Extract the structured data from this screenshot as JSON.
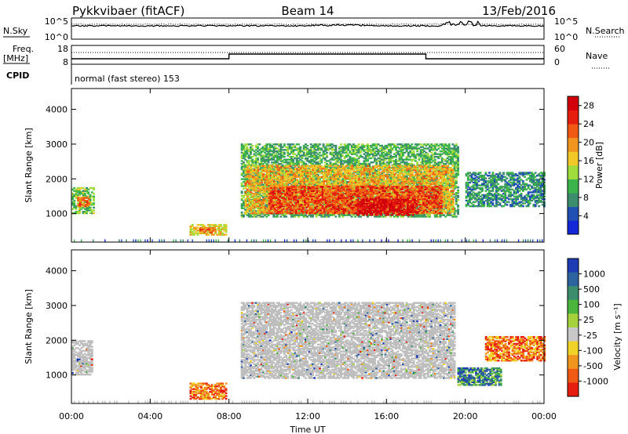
{
  "header": {
    "radar": "Pykkvibaer (fitACF)",
    "beam": "Beam 14",
    "date": "13/Feb/2016"
  },
  "strip_panels": {
    "nsky_label": "N.Sky",
    "nsky_ticks": [
      "10^5",
      "10^0"
    ],
    "nsearch_label": "N.Search",
    "nsearch_ticks": [
      "10^5",
      "10^0"
    ],
    "freq_label_1": "Freq.",
    "freq_label_2": "[MHz]",
    "freq_ticks": [
      "18",
      "8"
    ],
    "nave_label": "Nave",
    "nave_ticks": [
      "60",
      "0"
    ],
    "cpid_label": "CPID",
    "cpid_text": "normal (fast stereo) 153"
  },
  "colors": {
    "power_scale": [
      "#1428d8",
      "#2050b4",
      "#3c8c6e",
      "#3cb44b",
      "#a0dc3c",
      "#f0c828",
      "#f0961e",
      "#f05a14",
      "#e61e0f",
      "#d2000a"
    ],
    "velocity_scale": [
      "#1e3cb4",
      "#2d64a0",
      "#3c8c6e",
      "#4bb43c",
      "#a5d23c",
      "#c8c8c8",
      "#f0d228",
      "#f0961e",
      "#f05a14",
      "#e61e0f"
    ],
    "ground_scatter": "#bebebe"
  },
  "chart_data": [
    {
      "type": "heatmap",
      "name": "power",
      "xlabel": "Time UT",
      "ylabel": "Slant Range [km]",
      "xticks": [
        "00:00",
        "04:00",
        "08:00",
        "12:00",
        "16:00",
        "20:00",
        "00:00"
      ],
      "yticks": [
        "1000",
        "2000",
        "3000",
        "4000"
      ],
      "ylim": [
        180,
        4600
      ],
      "xlim_hours": [
        0,
        24
      ],
      "colorbar_label": "Power [dB]",
      "colorbar_ticks": [
        "4",
        "8",
        "12",
        "16",
        "20",
        "24",
        "28"
      ],
      "colorbar_range": [
        0,
        30
      ],
      "regions": [
        {
          "t0": 0.0,
          "t1": 1.1,
          "r0": 1000,
          "r1": 1750,
          "level": 12
        },
        {
          "t0": 0.3,
          "t1": 0.9,
          "r0": 1200,
          "r1": 1450,
          "level": 22
        },
        {
          "t0": 6.0,
          "t1": 7.8,
          "r0": 380,
          "r1": 700,
          "level": 16
        },
        {
          "t0": 6.5,
          "t1": 7.3,
          "r0": 450,
          "r1": 600,
          "level": 22
        },
        {
          "t0": 8.6,
          "t1": 19.6,
          "r0": 900,
          "r1": 3000,
          "level": 10
        },
        {
          "t0": 8.8,
          "t1": 19.4,
          "r0": 1000,
          "r1": 2400,
          "level": 18
        },
        {
          "t0": 10.0,
          "t1": 18.8,
          "r0": 1000,
          "r1": 1800,
          "level": 24
        },
        {
          "t0": 14.5,
          "t1": 17.5,
          "r0": 950,
          "r1": 1400,
          "level": 28
        },
        {
          "t0": 20.0,
          "t1": 24.0,
          "r0": 1200,
          "r1": 2200,
          "level": 8
        }
      ]
    },
    {
      "type": "heatmap",
      "name": "velocity",
      "xlabel": "Time UT",
      "ylabel": "Slant Range [km]",
      "xticks": [
        "00:00",
        "04:00",
        "08:00",
        "12:00",
        "16:00",
        "20:00",
        "00:00"
      ],
      "yticks": [
        "1000",
        "2000",
        "3000",
        "4000"
      ],
      "ylim": [
        180,
        4600
      ],
      "xlim_hours": [
        0,
        24
      ],
      "colorbar_label": "Velocity [m s⁻¹]",
      "colorbar_ticks": [
        "1000",
        "500",
        "100",
        "25",
        "-25",
        "-100",
        "-500",
        "-1000"
      ],
      "regions": [
        {
          "t0": 0.0,
          "t1": 1.0,
          "r0": 1000,
          "r1": 2000,
          "value": 0
        },
        {
          "t0": 6.0,
          "t1": 7.8,
          "r0": 300,
          "r1": 750,
          "value": -200
        },
        {
          "t0": 8.6,
          "t1": 19.4,
          "r0": 900,
          "r1": 3100,
          "value": 0
        },
        {
          "t0": 19.6,
          "t1": 21.8,
          "r0": 700,
          "r1": 1200,
          "value": 300
        },
        {
          "t0": 21.0,
          "t1": 24.0,
          "r0": 1400,
          "r1": 2100,
          "value": -100
        }
      ]
    }
  ]
}
